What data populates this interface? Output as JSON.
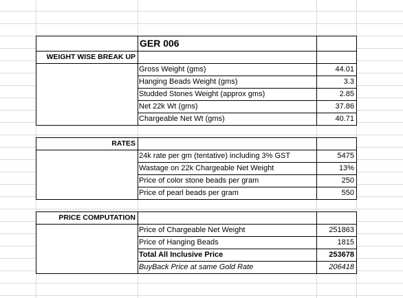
{
  "title": "GER 006",
  "sections": [
    {
      "heading": "WEIGHT WISE BREAK UP",
      "rows": [
        [
          "Gross Weight (gms)",
          "44.01"
        ],
        [
          "Hanging Beads Weight (gms)",
          "3.3"
        ],
        [
          "Studded Stones Weight (approx gms)",
          "2.85"
        ],
        [
          "Net 22k Wt (gms)",
          "37.86"
        ],
        [
          "Chargeable Net Wt (gms)",
          "40.71"
        ]
      ]
    },
    {
      "heading": "RATES",
      "rows": [
        [
          "24k  rate per gm (tentative) including 3% GST",
          "5475"
        ],
        [
          "Wastage on 22k Chargeable Net Weight",
          "13%"
        ],
        [
          "Price of color stone beads per gram",
          "250"
        ],
        [
          "Price of pearl beads per gram",
          "550"
        ]
      ]
    },
    {
      "heading": "PRICE COMPUTATION",
      "rows": [
        [
          "Price of Chargeable Net Weight",
          "251863"
        ],
        [
          "Price of Hanging Beads",
          "1815"
        ],
        [
          "Total All Inclusive Price",
          "253678"
        ],
        [
          "BuyBack Price at same Gold Rate",
          "206418"
        ]
      ]
    }
  ]
}
